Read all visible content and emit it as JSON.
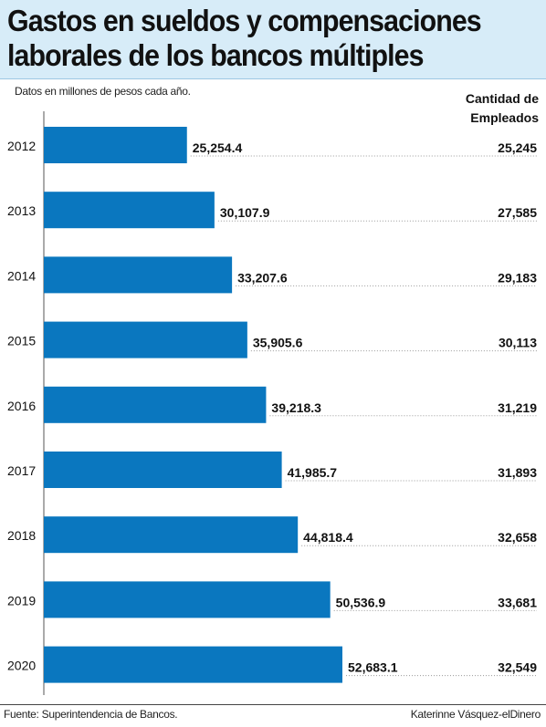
{
  "header": {
    "title_line1": "Gastos en sueldos y compensaciones",
    "title_line2": "laborales de los bancos múltiples",
    "subtitle": "Datos en millones de pesos cada año.",
    "employees_header_line1": "Cantidad de",
    "employees_header_line2": "Empleados"
  },
  "footer": {
    "source": "Fuente: Superintendencia de Bancos.",
    "credit": "Katerinne Vásquez-elDinero"
  },
  "colors": {
    "bar": "#0a77bf",
    "title_bg": "#d7ecf8"
  },
  "chart_data": {
    "type": "bar",
    "orientation": "horizontal",
    "categories": [
      "2012",
      "2013",
      "2014",
      "2015",
      "2016",
      "2017",
      "2018",
      "2019",
      "2020"
    ],
    "values": [
      25254.4,
      30107.9,
      33207.6,
      35905.6,
      39218.3,
      41985.7,
      44818.4,
      50536.9,
      52683.1
    ],
    "value_labels": [
      "25,254.4",
      "30,107.9",
      "33,207.6",
      "35,905.6",
      "39,218.3",
      "41,985.7",
      "44,818.4",
      "50,536.9",
      "52,683.1"
    ],
    "employees": [
      25245,
      27585,
      29183,
      30113,
      31219,
      31893,
      32658,
      33681,
      32549
    ],
    "employee_labels": [
      "25,245",
      "27,585",
      "29,183",
      "30,113",
      "31,219",
      "31,893",
      "32,658",
      "33,681",
      "32,549"
    ],
    "grid": false
  }
}
